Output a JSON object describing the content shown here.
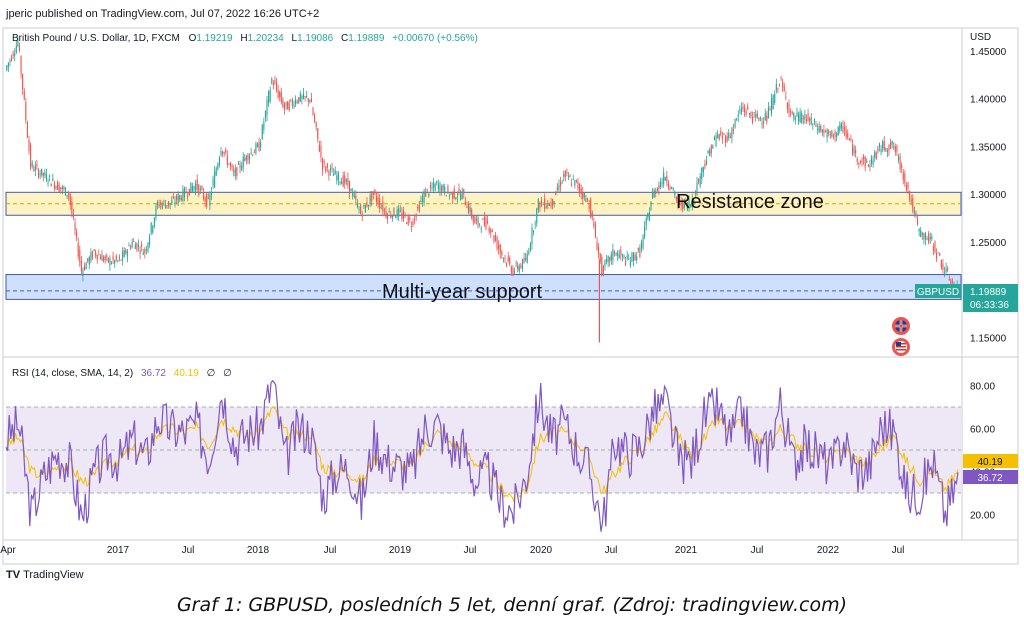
{
  "header": {
    "published_by": "jperic published on TradingView.com, Jul 07, 2022 16:26 UTC+2"
  },
  "legend": {
    "symbol": "British Pound / U.S. Dollar, 1D, FXCM",
    "open_label": "O",
    "open": "1.19219",
    "high_label": "H",
    "high": "1.20234",
    "low_label": "L",
    "low": "1.19086",
    "close_label": "C",
    "close": "1.19889",
    "change": "+0.00670 (+0.56%)"
  },
  "price_axis": {
    "currency": "USD",
    "ticks": [
      "1.45000",
      "1.40000",
      "1.35000",
      "1.30000",
      "1.25000",
      "1.20000",
      "1.15000"
    ]
  },
  "zones": {
    "resistance_label": "Resistance zone",
    "support_label": "Multi-year support"
  },
  "price_badge": {
    "symbol": "GBPUSD",
    "price": "1.19889",
    "countdown": "06:33:36"
  },
  "rsi": {
    "label": "RSI (14, close, SMA, 14, 2)",
    "rsi_value": "36.72",
    "sma_value": "40.19",
    "toggle_1": "∅",
    "toggle_2": "∅",
    "ticks": [
      "80.00",
      "60.00",
      "40.00",
      "20.00"
    ]
  },
  "time_axis": {
    "labels": [
      "Apr",
      "2017",
      "Jul",
      "2018",
      "Jul",
      "2019",
      "Jul",
      "2020",
      "Jul",
      "2021",
      "Jul",
      "2022",
      "Jul"
    ]
  },
  "branding": {
    "logo": "TV",
    "name": "TradingView"
  },
  "caption": "Graf 1: GBPUSD, posledních 5 let, denní graf. (Zdroj: tradingview.com)",
  "colors": {
    "up": "#26a69a",
    "down": "#ef5350",
    "rsi_line": "#7e57c2",
    "rsi_sma": "#f5c000",
    "resistance_fill": "#fff3c4",
    "support_fill": "#cfe0ff",
    "zone_border": "#3d5ab8"
  },
  "chart_data": [
    {
      "type": "line",
      "series": [
        {
          "name": "GBPUSD",
          "x": [
            "2016-04",
            "2016-05",
            "2016-06",
            "2016-07",
            "2016-08",
            "2016-09",
            "2016-10",
            "2016-11",
            "2016-12",
            "2017-01",
            "2017-02",
            "2017-03",
            "2017-04",
            "2017-05",
            "2017-06",
            "2017-07",
            "2017-08",
            "2017-09",
            "2017-10",
            "2017-11",
            "2017-12",
            "2018-01",
            "2018-02",
            "2018-03",
            "2018-04",
            "2018-05",
            "2018-06",
            "2018-07",
            "2018-08",
            "2018-09",
            "2018-10",
            "2018-11",
            "2018-12",
            "2019-01",
            "2019-02",
            "2019-03",
            "2019-04",
            "2019-05",
            "2019-06",
            "2019-07",
            "2019-08",
            "2019-09",
            "2019-10",
            "2019-11",
            "2019-12",
            "2020-01",
            "2020-02",
            "2020-03",
            "2020-04",
            "2020-05",
            "2020-06",
            "2020-07",
            "2020-08",
            "2020-09",
            "2020-10",
            "2020-11",
            "2020-12",
            "2021-01",
            "2021-02",
            "2021-03",
            "2021-04",
            "2021-05",
            "2021-06",
            "2021-07",
            "2021-08",
            "2021-09",
            "2021-10",
            "2021-11",
            "2021-12",
            "2022-01",
            "2022-02",
            "2022-03",
            "2022-04",
            "2022-05",
            "2022-06",
            "2022-07"
          ],
          "values": [
            1.43,
            1.46,
            1.33,
            1.32,
            1.31,
            1.3,
            1.22,
            1.24,
            1.23,
            1.23,
            1.25,
            1.24,
            1.29,
            1.29,
            1.3,
            1.31,
            1.29,
            1.35,
            1.32,
            1.34,
            1.35,
            1.42,
            1.39,
            1.4,
            1.4,
            1.33,
            1.32,
            1.31,
            1.28,
            1.3,
            1.28,
            1.28,
            1.27,
            1.3,
            1.31,
            1.3,
            1.3,
            1.27,
            1.27,
            1.24,
            1.22,
            1.23,
            1.29,
            1.29,
            1.32,
            1.31,
            1.29,
            1.22,
            1.24,
            1.23,
            1.24,
            1.3,
            1.32,
            1.29,
            1.29,
            1.33,
            1.36,
            1.36,
            1.39,
            1.38,
            1.38,
            1.42,
            1.38,
            1.38,
            1.37,
            1.36,
            1.37,
            1.34,
            1.33,
            1.35,
            1.35,
            1.31,
            1.26,
            1.25,
            1.22,
            1.199
          ],
          "high": 1.42,
          "low": 1.145
        }
      ],
      "ylabel": "USD",
      "ylim": [
        1.135,
        1.455
      ],
      "zones": [
        {
          "label": "Resistance zone",
          "from": 1.278,
          "to": 1.302
        },
        {
          "label": "Multi-year support",
          "from": 1.19,
          "to": 1.216
        }
      ],
      "current_price": 1.19889
    },
    {
      "type": "line",
      "title": "RSI (14, close, SMA, 14, 2)",
      "series": [
        {
          "name": "RSI",
          "values": [
            55,
            62,
            20,
            38,
            48,
            44,
            18,
            40,
            48,
            45,
            55,
            46,
            65,
            60,
            58,
            62,
            46,
            78,
            52,
            58,
            60,
            82,
            45,
            60,
            58,
            28,
            40,
            42,
            25,
            55,
            45,
            42,
            40,
            60,
            62,
            50,
            52,
            35,
            40,
            25,
            22,
            38,
            75,
            55,
            62,
            50,
            40,
            15,
            55,
            48,
            52,
            68,
            72,
            45,
            45,
            65,
            70,
            55,
            68,
            48,
            50,
            72,
            45,
            52,
            48,
            42,
            55,
            40,
            42,
            62,
            58,
            30,
            30,
            45,
            20,
            36.72
          ]
        },
        {
          "name": "SMA",
          "values": [
            52,
            56,
            40,
            38,
            42,
            44,
            35,
            38,
            44,
            46,
            50,
            48,
            58,
            60,
            58,
            60,
            52,
            65,
            60,
            56,
            58,
            70,
            58,
            56,
            58,
            42,
            40,
            40,
            35,
            45,
            46,
            44,
            42,
            52,
            58,
            54,
            52,
            44,
            40,
            32,
            28,
            32,
            55,
            58,
            58,
            54,
            46,
            30,
            40,
            46,
            50,
            58,
            66,
            56,
            48,
            55,
            64,
            60,
            62,
            56,
            52,
            60,
            55,
            50,
            48,
            46,
            50,
            46,
            44,
            52,
            56,
            44,
            36,
            40,
            32,
            40.19
          ]
        }
      ],
      "ylim": [
        10,
        90
      ],
      "levels": [
        70,
        50,
        30
      ]
    }
  ]
}
